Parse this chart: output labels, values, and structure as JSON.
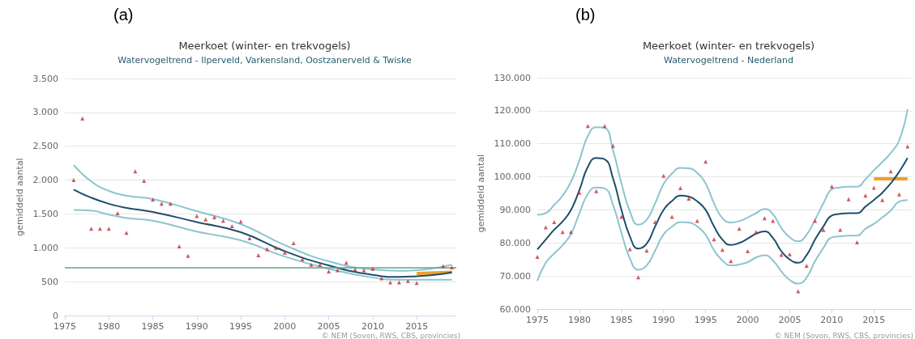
{
  "chart_data": [
    {
      "type": "scatter",
      "title": "Meerkoet (winter- en trekvogels)",
      "subtitle": "Watervogeltrend - Ilperveld, Varkensland, Oostzanerveld & Twiske",
      "ylabel": "gemiddeld aantal",
      "annotations": [
        "(a)",
        "© NEM (Sovon, RWS, CBS, provincies)"
      ],
      "xlim": [
        1975,
        2019.5
      ],
      "xticks": [
        1975,
        1980,
        1985,
        1990,
        1995,
        2000,
        2005,
        2010,
        2015
      ],
      "ylim": [
        0,
        3500
      ],
      "yticks": [
        0,
        {
          "value": 500,
          "label": "500"
        },
        {
          "value": 1000,
          "label": "1.000"
        },
        {
          "value": 1500,
          "label": "1.500"
        },
        {
          "value": 2000,
          "label": "2.000"
        },
        {
          "value": 2500,
          "label": "2.500"
        },
        {
          "value": 3000,
          "label": "3.000"
        },
        {
          "value": 3500,
          "label": "3.500"
        }
      ],
      "grid": "y",
      "ref_lines": [
        {
          "axis": "y",
          "value": 710,
          "color": "#5aa88a"
        }
      ],
      "series": [
        {
          "type": "line",
          "marker": "none",
          "color": "#8cc5d0",
          "x": [
            1976,
            1978,
            1980,
            1982,
            1985,
            1990,
            1995,
            2000,
            2005,
            2010,
            2013,
            2015,
            2017,
            2019
          ],
          "values": [
            2220,
            1980,
            1840,
            1770,
            1720,
            1540,
            1350,
            1040,
            800,
            680,
            660,
            670,
            700,
            750
          ]
        },
        {
          "type": "line",
          "marker": "none",
          "color": "#8cc5d0",
          "x": [
            1976,
            1978,
            1980,
            1982,
            1985,
            1990,
            1995,
            2000,
            2005,
            2010,
            2013,
            2015,
            2017,
            2019
          ],
          "values": [
            1560,
            1550,
            1490,
            1440,
            1400,
            1240,
            1110,
            870,
            690,
            560,
            530,
            530,
            530,
            530
          ]
        },
        {
          "type": "line",
          "marker": "none",
          "color": "#1f4e6e",
          "x": [
            1976,
            1978,
            1980,
            1982,
            1985,
            1990,
            1995,
            2000,
            2005,
            2010,
            2013,
            2015,
            2017,
            2019
          ],
          "values": [
            1860,
            1740,
            1650,
            1590,
            1530,
            1380,
            1230,
            950,
            740,
            600,
            570,
            580,
            600,
            640
          ]
        },
        {
          "type": "line",
          "marker": "none",
          "color": "#f0a020",
          "x": [
            2015,
            2019
          ],
          "values": [
            620,
            640
          ]
        },
        {
          "marker": "triangle",
          "color": "#c8303a",
          "x": [
            1976,
            1977,
            1978,
            1979,
            1980,
            1981,
            1982,
            1983,
            1984,
            1985,
            1986,
            1987,
            1988,
            1989,
            1990,
            1991,
            1992,
            1993,
            1994,
            1995,
            1996,
            1997,
            1998,
            1999,
            2000,
            2001,
            2002,
            2003,
            2004,
            2005,
            2006,
            2007,
            2008,
            2009,
            2010,
            2011,
            2012,
            2013,
            2014,
            2015,
            2016,
            2017,
            2018,
            2019
          ],
          "values": [
            2000,
            2910,
            1280,
            1280,
            1280,
            1510,
            1220,
            2130,
            1990,
            1710,
            1650,
            1650,
            1020,
            880,
            1470,
            1420,
            1450,
            1400,
            1320,
            1390,
            1140,
            890,
            980,
            1000,
            930,
            1070,
            830,
            750,
            750,
            650,
            670,
            780,
            680,
            670,
            690,
            550,
            490,
            490,
            510,
            480,
            null,
            null,
            730,
            710
          ]
        }
      ]
    },
    {
      "type": "scatter",
      "title": "Meerkoet (winter- en trekvogels)",
      "subtitle": "Watervogeltrend - Nederland",
      "ylabel": "gemiddeld aantal",
      "annotations": [
        "(b)",
        "© NEM (Sovon, RWS, CBS, provincies)"
      ],
      "x": [
        1975,
        1976,
        1977,
        1978,
        1979,
        1980,
        1981,
        1982,
        1983,
        1984,
        1985,
        1986,
        1987,
        1988,
        1989,
        1990,
        1991,
        1992,
        1993,
        1994,
        1995,
        1996,
        1997,
        1998,
        1999,
        2000,
        2001,
        2002,
        2003,
        2004,
        2005,
        2006,
        2007,
        2008,
        2009,
        2010,
        2011,
        2012,
        2013,
        2014,
        2015,
        2016,
        2017,
        2018,
        2019
      ],
      "xlim": [
        1975,
        2019.5
      ],
      "xticks": [
        1975,
        1980,
        1985,
        1990,
        1995,
        2000,
        2005,
        2010,
        2015
      ],
      "ylim": [
        60000,
        130000
      ],
      "yticks": [
        {
          "value": 60000,
          "label": "60.000"
        },
        {
          "value": 70000,
          "label": "70.000"
        },
        {
          "value": 80000,
          "label": "80.000"
        },
        {
          "value": 90000,
          "label": "90.000"
        },
        {
          "value": 100000,
          "label": "100.000"
        },
        {
          "value": 110000,
          "label": "110.000"
        },
        {
          "value": 120000,
          "label": "120.000"
        },
        {
          "value": 130000,
          "label": "130.000"
        }
      ],
      "grid": "y",
      "series": [
        {
          "type": "line",
          "marker": "none",
          "color": "#8cc5d0",
          "values": [
            88500,
            89000,
            91500,
            94300,
            98500,
            105000,
            112300,
            115000,
            114800,
            108000,
            98000,
            89600,
            85500,
            87000,
            92000,
            97800,
            101000,
            102700,
            102600,
            101200,
            98000,
            92000,
            87500,
            86200,
            86600,
            87700,
            89000,
            90300,
            88700,
            84500,
            81700,
            80500,
            82500,
            87000,
            92000,
            96200,
            96800,
            97000,
            97000,
            99300,
            102000,
            104500,
            107200,
            111000,
            120500
          ]
        },
        {
          "type": "line",
          "marker": "none",
          "color": "#8cc5d0",
          "values": [
            68500,
            74000,
            76800,
            79300,
            82700,
            89000,
            94800,
            96800,
            96500,
            91500,
            83000,
            75300,
            71900,
            73200,
            77700,
            82600,
            84900,
            86300,
            86200,
            85000,
            82500,
            77800,
            74700,
            73200,
            73500,
            74200,
            75600,
            76300,
            74700,
            71400,
            68800,
            67700,
            69500,
            74500,
            78500,
            81700,
            82000,
            82200,
            82200,
            84300,
            85800,
            87700,
            89800,
            92500,
            93000
          ]
        },
        {
          "type": "line",
          "marker": "none",
          "color": "#1f4e6e",
          "values": [
            78000,
            81000,
            84000,
            86500,
            90000,
            96000,
            103000,
            105700,
            105300,
            99500,
            90000,
            82000,
            78300,
            79800,
            85000,
            90000,
            92700,
            94300,
            94000,
            92600,
            90000,
            85000,
            81000,
            79400,
            80000,
            81300,
            82800,
            83500,
            81500,
            77500,
            75000,
            74000,
            76300,
            81000,
            85000,
            88300,
            88800,
            89000,
            89000,
            91000,
            93000,
            95200,
            98000,
            101500,
            105700
          ]
        },
        {
          "type": "line",
          "marker": "none",
          "color": "#f0a020",
          "x": [
            2015,
            2019
          ],
          "values": [
            99400,
            99400
          ]
        },
        {
          "marker": "triangle",
          "color": "#c8303a",
          "values": [
            75800,
            84700,
            86300,
            83300,
            83300,
            95200,
            115400,
            95700,
            115400,
            109400,
            87900,
            78100,
            69600,
            77700,
            86300,
            100300,
            87900,
            96600,
            93400,
            86700,
            104600,
            81100,
            77900,
            74500,
            84300,
            77500,
            83300,
            87500,
            86700,
            76400,
            76600,
            65400,
            73100,
            86700,
            83900,
            97100,
            84000,
            93200,
            80200,
            94300,
            96700,
            93000,
            101700,
            94700,
            109200
          ]
        }
      ]
    }
  ]
}
